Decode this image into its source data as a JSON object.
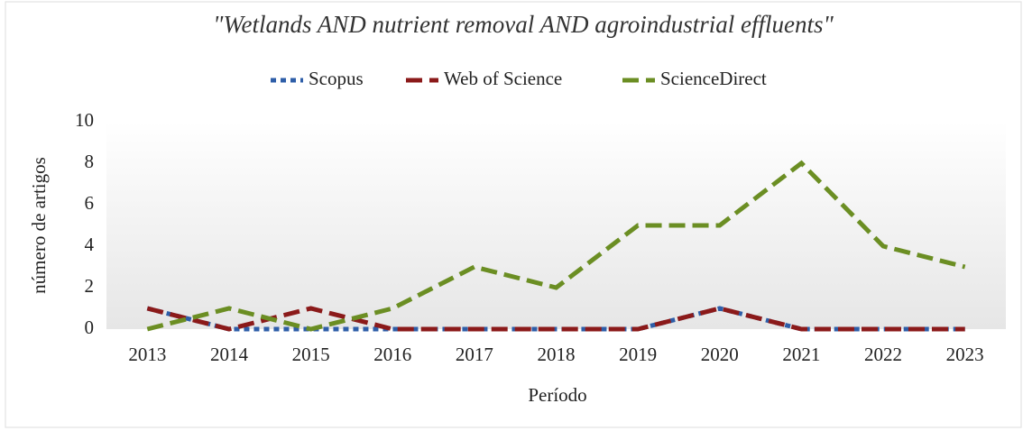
{
  "chart_data": {
    "type": "line",
    "title": "\"Wetlands AND nutrient removal AND agroindustrial effluents\"",
    "x_label": "Período",
    "y_label": "número de artigos",
    "categories": [
      "2013",
      "2014",
      "2015",
      "2016",
      "2017",
      "2018",
      "2019",
      "2020",
      "2021",
      "2022",
      "2023"
    ],
    "series": [
      {
        "name": "Scopus",
        "color": "#2e5ea8",
        "dash": "dotted",
        "values": [
          1,
          0,
          0,
          0,
          0,
          0,
          0,
          1,
          0,
          0,
          0
        ]
      },
      {
        "name": "Web of Science",
        "color": "#8b1a1a",
        "dash": "dashed",
        "values": [
          1,
          0,
          1,
          0,
          0,
          0,
          0,
          1,
          0,
          0,
          0
        ]
      },
      {
        "name": "ScienceDirect",
        "color": "#6b8e23",
        "dash": "dashed",
        "values": [
          0,
          1,
          0,
          1,
          3,
          2,
          5,
          5,
          8,
          4,
          3
        ]
      }
    ],
    "ylim": [
      0,
      10
    ],
    "yticks": [
      0,
      2,
      4,
      6,
      8,
      10
    ],
    "grid": false,
    "legend": "top"
  }
}
